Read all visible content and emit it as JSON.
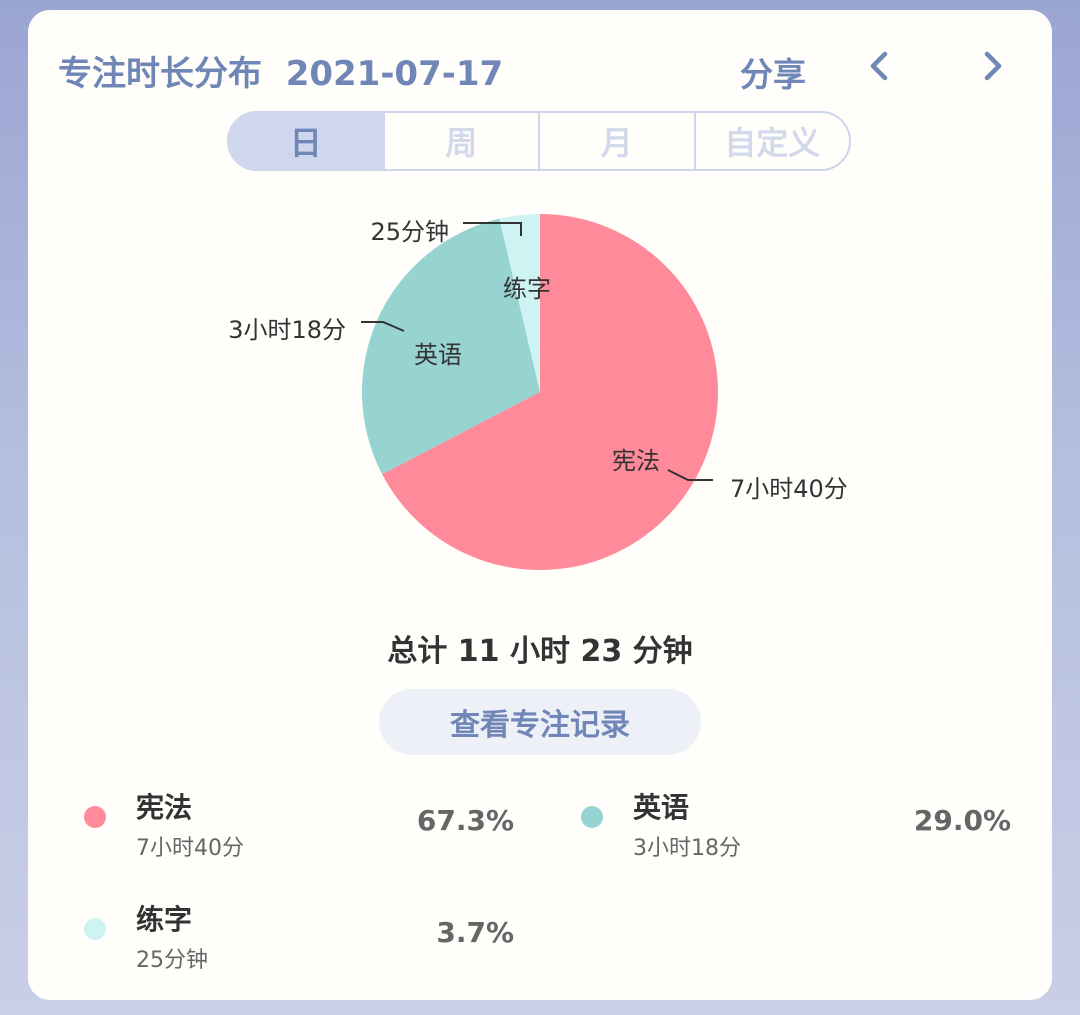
{
  "header": {
    "title": "专注时长分布",
    "date": "2021-07-17",
    "share_label": "分享",
    "prev_icon": "chevron-left-icon",
    "next_icon": "chevron-right-icon"
  },
  "tabs": [
    {
      "label": "日",
      "active": true
    },
    {
      "label": "周",
      "active": false
    },
    {
      "label": "月",
      "active": false
    },
    {
      "label": "自定义",
      "active": false
    }
  ],
  "chart_data": {
    "type": "pie",
    "categories": [
      "宪法",
      "英语",
      "练字"
    ],
    "values": [
      460,
      198,
      25
    ],
    "value_labels": [
      "7小时40分",
      "3小时18分",
      "25分钟"
    ],
    "percentages": [
      "67.3%",
      "29.0%",
      "3.7%"
    ],
    "colors": [
      "#ff8a99",
      "#97d3d0",
      "#cef3f3"
    ]
  },
  "total_text": "总计 11 小时 23 分钟",
  "records_button_label": "查看专注记录",
  "legend": [
    {
      "name": "宪法",
      "duration": "7小时40分",
      "percent": "67.3%",
      "color": "#ff8a99"
    },
    {
      "name": "英语",
      "duration": "3小时18分",
      "percent": "29.0%",
      "color": "#97d3d0"
    },
    {
      "name": "练字",
      "duration": "25分钟",
      "percent": "3.7%",
      "color": "#cef3f3"
    }
  ]
}
